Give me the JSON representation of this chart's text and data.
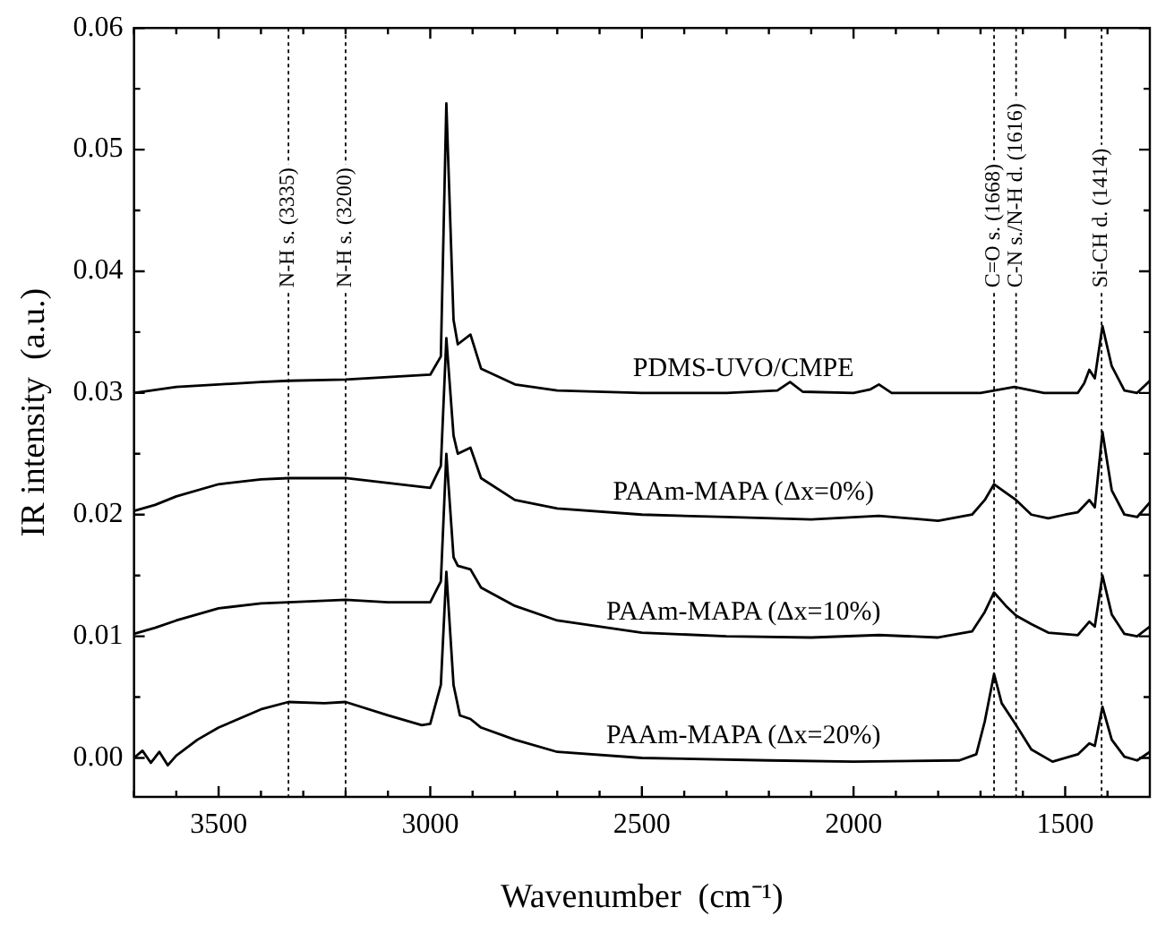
{
  "chart_data": {
    "type": "line",
    "xlabel": "Wavenumber  (cm⁻¹)",
    "ylabel": "IR intensity  (a.u.)",
    "xlim": [
      3700,
      1300
    ],
    "ylim": [
      -0.0032,
      0.06
    ],
    "xticks": [
      {
        "value": 3700,
        "label": null
      },
      {
        "value": 3600,
        "label": null
      },
      3500,
      {
        "value": 3400,
        "label": null
      },
      {
        "value": 3300,
        "label": null
      },
      {
        "value": 3200,
        "label": null
      },
      {
        "value": 3100,
        "label": null
      },
      3000,
      {
        "value": 2900,
        "label": null
      },
      {
        "value": 2800,
        "label": null
      },
      {
        "value": 2700,
        "label": null
      },
      {
        "value": 2600,
        "label": null
      },
      2500,
      {
        "value": 2400,
        "label": null
      },
      {
        "value": 2300,
        "label": null
      },
      {
        "value": 2200,
        "label": null
      },
      {
        "value": 2100,
        "label": null
      },
      2000,
      {
        "value": 1900,
        "label": null
      },
      {
        "value": 1800,
        "label": null
      },
      {
        "value": 1700,
        "label": null
      },
      {
        "value": 1600,
        "label": null
      },
      1500,
      {
        "value": 1400,
        "label": null
      }
    ],
    "yticks": [
      {
        "value": 0,
        "label": "0.00"
      },
      {
        "value": 0.005,
        "label": null
      },
      {
        "value": 0.01,
        "label": "0.01"
      },
      {
        "value": 0.015,
        "label": null
      },
      {
        "value": 0.02,
        "label": "0.02"
      },
      {
        "value": 0.025,
        "label": null
      },
      {
        "value": 0.03,
        "label": "0.03"
      },
      {
        "value": 0.035,
        "label": null
      },
      {
        "value": 0.04,
        "label": "0.04"
      },
      {
        "value": 0.045,
        "label": null
      },
      {
        "value": 0.05,
        "label": "0.05"
      },
      {
        "value": 0.055,
        "label": null
      },
      {
        "value": 0.06,
        "label": "0.06"
      }
    ],
    "grid": false,
    "legend": false,
    "line_style": "solid",
    "ref_lines": [
      {
        "axis": "x",
        "value": 3335,
        "label": "N-H s. (3335)",
        "color": "#000000",
        "line_style": "dotted"
      },
      {
        "axis": "x",
        "value": 3200,
        "label": "N-H s. (3200)",
        "color": "#000000",
        "line_style": "dotted"
      },
      {
        "axis": "x",
        "value": 1668,
        "label": "C=O s. (1668)",
        "color": "#000000",
        "line_style": "dotted"
      },
      {
        "axis": "x",
        "value": 1616,
        "label": "C-N s./N-H d. (1616)",
        "color": "#000000",
        "line_style": "dotted"
      },
      {
        "axis": "x",
        "value": 1414,
        "label": "Si-CH d. (1414)",
        "color": "#000000",
        "line_style": "dotted"
      }
    ],
    "series": [
      {
        "name": "PDMS-UVO/CMPE",
        "color": "#000000",
        "x": [
          3700,
          3600,
          3500,
          3400,
          3335,
          3200,
          3100,
          3000,
          2975,
          2962,
          2945,
          2935,
          2905,
          2880,
          2800,
          2700,
          2500,
          2300,
          2180,
          2150,
          2120,
          2000,
          1960,
          1940,
          1910,
          1800,
          1700,
          1620,
          1550,
          1470,
          1455,
          1443,
          1430,
          1412,
          1390,
          1360,
          1330,
          1300
        ],
        "values": [
          0.03,
          0.0305,
          0.0307,
          0.0309,
          0.031,
          0.0311,
          0.0313,
          0.0315,
          0.033,
          0.0538,
          0.036,
          0.034,
          0.0348,
          0.032,
          0.0307,
          0.0302,
          0.03,
          0.03,
          0.0302,
          0.0309,
          0.0301,
          0.03,
          0.0303,
          0.0307,
          0.03,
          0.03,
          0.03,
          0.0305,
          0.03,
          0.03,
          0.0308,
          0.0319,
          0.0312,
          0.0355,
          0.0322,
          0.0302,
          0.03,
          0.031
        ]
      },
      {
        "name": "PAAm-MAPA (Δx=0%)",
        "color": "#000000",
        "x": [
          3700,
          3650,
          3600,
          3500,
          3400,
          3335,
          3200,
          3100,
          3000,
          2975,
          2962,
          2945,
          2935,
          2905,
          2880,
          2800,
          2700,
          2500,
          2300,
          2100,
          1940,
          1800,
          1720,
          1690,
          1668,
          1640,
          1616,
          1580,
          1540,
          1500,
          1470,
          1443,
          1430,
          1412,
          1390,
          1360,
          1330,
          1300
        ],
        "values": [
          0.0203,
          0.0208,
          0.0215,
          0.0225,
          0.0229,
          0.023,
          0.023,
          0.0226,
          0.0222,
          0.024,
          0.0345,
          0.0265,
          0.025,
          0.0255,
          0.023,
          0.0212,
          0.0205,
          0.02,
          0.0198,
          0.0196,
          0.0199,
          0.0195,
          0.02,
          0.0212,
          0.0225,
          0.0218,
          0.0212,
          0.02,
          0.0197,
          0.02,
          0.0202,
          0.0212,
          0.0206,
          0.0268,
          0.022,
          0.02,
          0.0198,
          0.021
        ]
      },
      {
        "name": "PAAm-MAPA (Δx=10%)",
        "color": "#000000",
        "x": [
          3700,
          3650,
          3600,
          3500,
          3400,
          3335,
          3200,
          3100,
          3000,
          2975,
          2962,
          2945,
          2935,
          2905,
          2880,
          2800,
          2700,
          2500,
          2300,
          2100,
          1940,
          1800,
          1720,
          1690,
          1668,
          1640,
          1616,
          1580,
          1540,
          1470,
          1443,
          1430,
          1412,
          1390,
          1360,
          1330,
          1300
        ],
        "values": [
          0.0102,
          0.0107,
          0.0113,
          0.0123,
          0.0127,
          0.0128,
          0.013,
          0.0128,
          0.0128,
          0.0145,
          0.025,
          0.0165,
          0.0158,
          0.0155,
          0.014,
          0.0125,
          0.0113,
          0.0103,
          0.01,
          0.0099,
          0.0101,
          0.0099,
          0.0104,
          0.012,
          0.0136,
          0.0125,
          0.0117,
          0.011,
          0.0103,
          0.0101,
          0.0112,
          0.0108,
          0.015,
          0.0118,
          0.0102,
          0.01,
          0.0108
        ]
      },
      {
        "name": "PAAm-MAPA (Δx=20%)",
        "color": "#000000",
        "x": [
          3700,
          3680,
          3660,
          3640,
          3620,
          3600,
          3550,
          3500,
          3400,
          3335,
          3250,
          3200,
          3100,
          3020,
          3000,
          2975,
          2962,
          2945,
          2930,
          2905,
          2880,
          2800,
          2700,
          2500,
          2200,
          2000,
          1750,
          1710,
          1690,
          1668,
          1650,
          1616,
          1580,
          1530,
          1470,
          1443,
          1430,
          1412,
          1390,
          1360,
          1330,
          1300
        ],
        "values": [
          0.0,
          0.0006,
          -0.0004,
          0.0005,
          -0.0006,
          0.0002,
          0.0015,
          0.0025,
          0.004,
          0.0046,
          0.0045,
          0.0046,
          0.0035,
          0.0027,
          0.0028,
          0.006,
          0.0153,
          0.006,
          0.0035,
          0.0032,
          0.0025,
          0.0015,
          0.0005,
          0.0,
          -0.0002,
          -0.0003,
          -0.0002,
          0.0003,
          0.003,
          0.0069,
          0.0045,
          0.0027,
          0.0007,
          -0.0003,
          0.0003,
          0.0012,
          0.001,
          0.0042,
          0.0015,
          0.0001,
          -0.0002,
          0.0005
        ]
      }
    ]
  }
}
